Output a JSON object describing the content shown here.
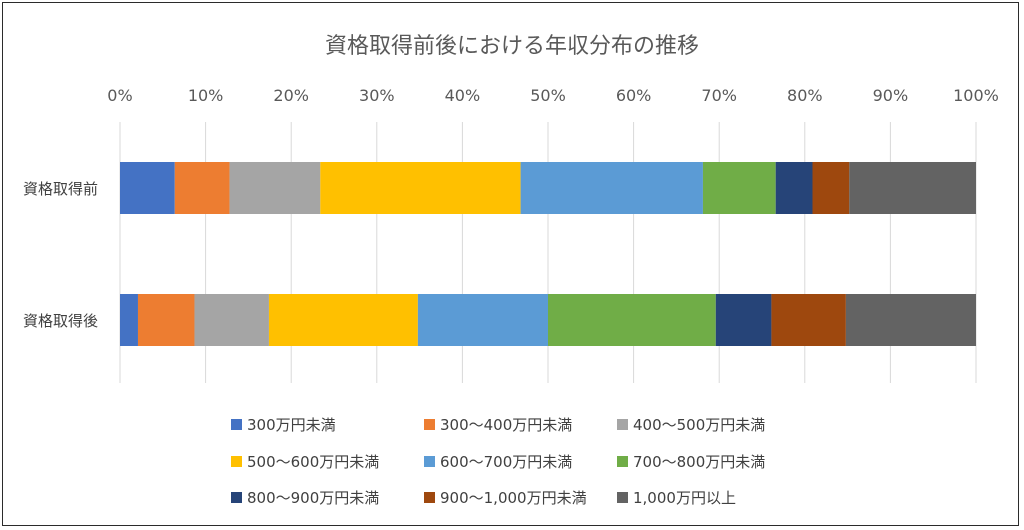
{
  "chart_data": {
    "type": "bar",
    "orientation": "horizontal",
    "stacked": "percent",
    "title": "資格取得前後における年収分布の推移",
    "xlabel": "",
    "ylabel": "",
    "xlim": [
      0,
      100
    ],
    "x_ticks": [
      "0%",
      "10%",
      "20%",
      "30%",
      "40%",
      "50%",
      "60%",
      "70%",
      "80%",
      "90%",
      "100%"
    ],
    "grid": true,
    "legend_position": "bottom",
    "categories": [
      "資格取得前",
      "資格取得後"
    ],
    "series": [
      {
        "name": "300万円未満",
        "color": "#4472C4",
        "values": [
          6.4,
          2.1
        ]
      },
      {
        "name": "300〜400万円未満",
        "color": "#ED7D31",
        "values": [
          6.4,
          6.6
        ]
      },
      {
        "name": "400〜500万円未満",
        "color": "#A5A5A5",
        "values": [
          10.6,
          8.7
        ]
      },
      {
        "name": "500〜600万円未満",
        "color": "#FFC000",
        "values": [
          23.4,
          17.4
        ]
      },
      {
        "name": "600〜700万円未満",
        "color": "#5B9BD5",
        "values": [
          21.3,
          15.2
        ]
      },
      {
        "name": "700〜800万円未満",
        "color": "#70AD47",
        "values": [
          8.5,
          19.6
        ]
      },
      {
        "name": "800〜900万円未満",
        "color": "#264478",
        "values": [
          4.3,
          6.5
        ]
      },
      {
        "name": "900〜1,000万円未満",
        "color": "#9E480E",
        "values": [
          4.3,
          8.7
        ]
      },
      {
        "name": "1,000万円以上",
        "color": "#636363",
        "values": [
          14.8,
          15.2
        ]
      }
    ]
  }
}
